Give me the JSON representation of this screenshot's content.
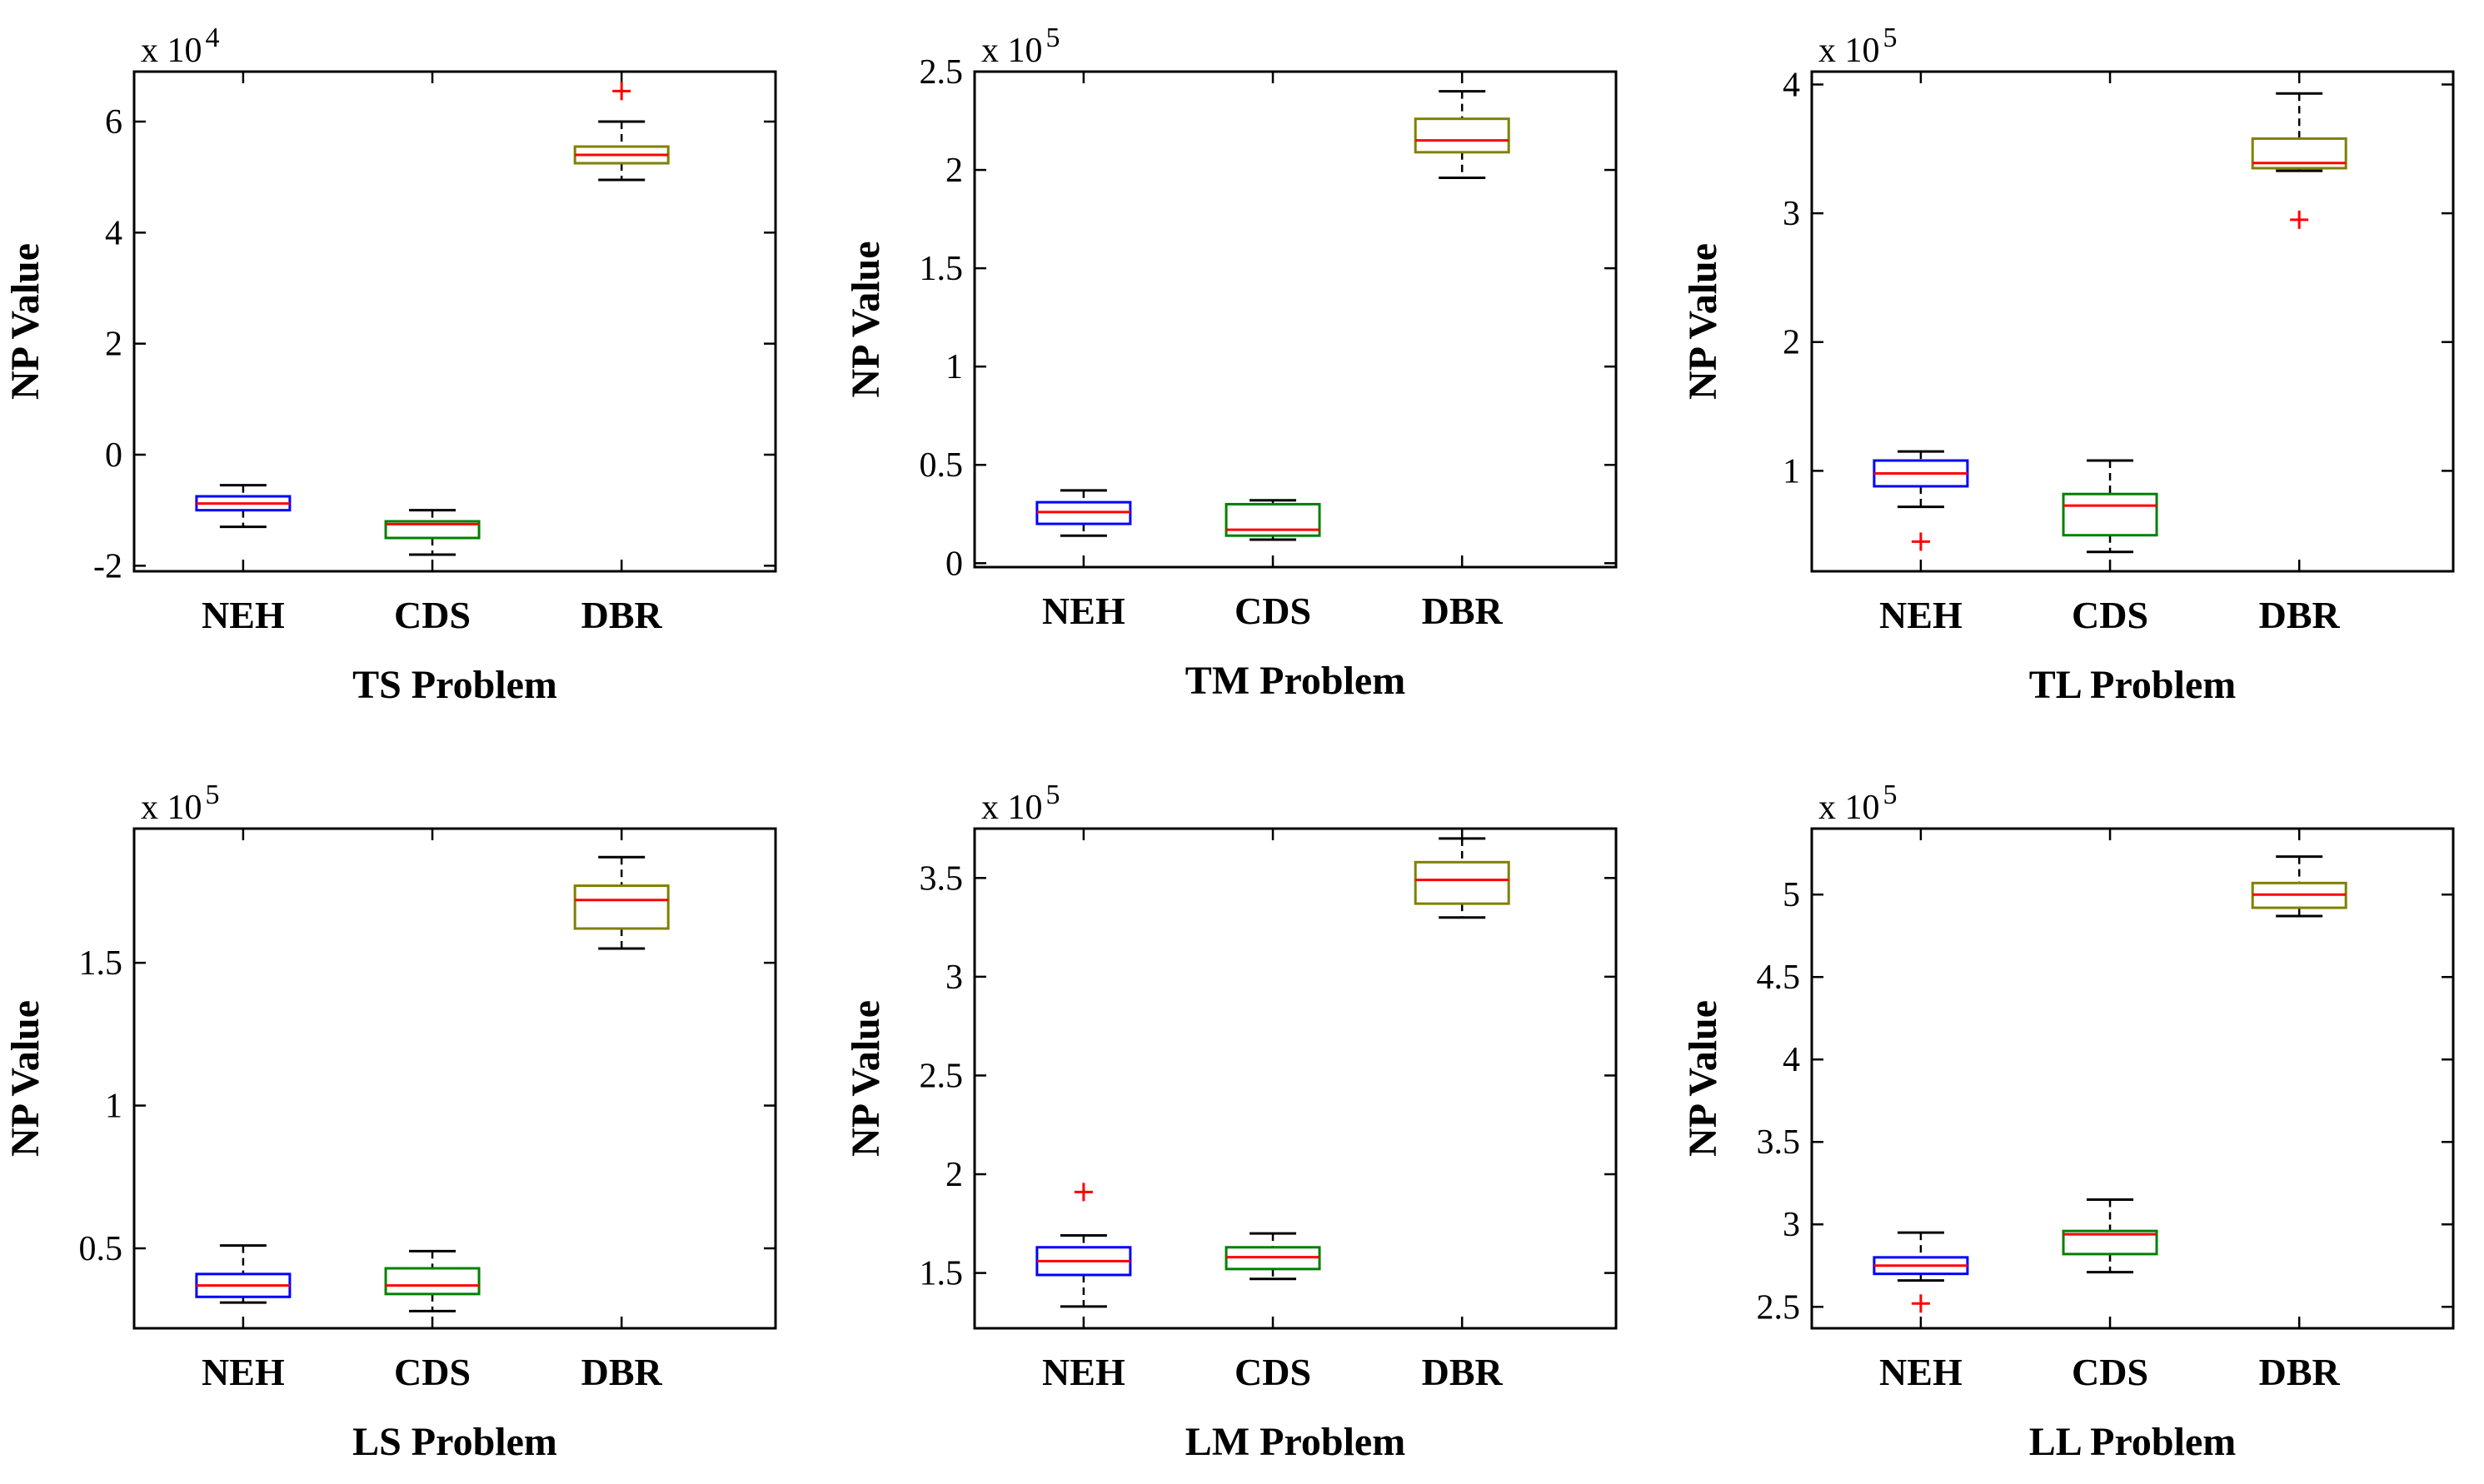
{
  "figure": {
    "ylabel": "NP Value",
    "multiplier_base": "x 10"
  },
  "colors": {
    "NEH": "#0000ff",
    "CDS": "#008000",
    "DBR": "#808000",
    "median": "#ff0000",
    "outlier": "#ff0000",
    "whisker": "#000000"
  },
  "chart_data": [
    {
      "type": "boxplot",
      "title": "TS Problem",
      "xlabel": "TS Problem",
      "ylabel": "NP Value",
      "multiplier_exponent": "4",
      "ylim": [
        -2.1,
        6.9
      ],
      "yticks": [
        -2,
        0,
        2,
        4,
        6
      ],
      "ytick_labels": [
        "-2",
        "0",
        "2",
        "4",
        "6"
      ],
      "categories": [
        "NEH",
        "CDS",
        "DBR"
      ],
      "boxes": [
        {
          "name": "NEH",
          "whisker_low": -1.3,
          "q1": -1.0,
          "median": -0.88,
          "q3": -0.75,
          "whisker_high": -0.55,
          "outliers": []
        },
        {
          "name": "CDS",
          "whisker_low": -1.8,
          "q1": -1.5,
          "median": -1.25,
          "q3": -1.2,
          "whisker_high": -1.0,
          "outliers": []
        },
        {
          "name": "DBR",
          "whisker_low": 4.95,
          "q1": 5.25,
          "median": 5.4,
          "q3": 5.55,
          "whisker_high": 6.0,
          "outliers": [
            6.55
          ]
        }
      ]
    },
    {
      "type": "boxplot",
      "title": "TM Problem",
      "xlabel": "TM Problem",
      "ylabel": "NP Value",
      "multiplier_exponent": "5",
      "ylim": [
        -0.02,
        2.5
      ],
      "yticks": [
        0,
        0.5,
        1,
        1.5,
        2,
        2.5
      ],
      "ytick_labels": [
        "0",
        "0.5",
        "1",
        "1.5",
        "2",
        "2.5"
      ],
      "categories": [
        "NEH",
        "CDS",
        "DBR"
      ],
      "boxes": [
        {
          "name": "NEH",
          "whisker_low": 0.14,
          "q1": 0.2,
          "median": 0.26,
          "q3": 0.31,
          "whisker_high": 0.37,
          "outliers": []
        },
        {
          "name": "CDS",
          "whisker_low": 0.12,
          "q1": 0.14,
          "median": 0.17,
          "q3": 0.3,
          "whisker_high": 0.32,
          "outliers": []
        },
        {
          "name": "DBR",
          "whisker_low": 1.96,
          "q1": 2.09,
          "median": 2.15,
          "q3": 2.26,
          "whisker_high": 2.4,
          "outliers": []
        }
      ]
    },
    {
      "type": "boxplot",
      "title": "TL Problem",
      "xlabel": "TL Problem",
      "ylabel": "NP Value",
      "multiplier_exponent": "5",
      "ylim": [
        0.22,
        4.1
      ],
      "yticks": [
        1,
        2,
        3,
        4
      ],
      "ytick_labels": [
        "1",
        "2",
        "3",
        "4"
      ],
      "categories": [
        "NEH",
        "CDS",
        "DBR"
      ],
      "boxes": [
        {
          "name": "NEH",
          "whisker_low": 0.72,
          "q1": 0.88,
          "median": 0.98,
          "q3": 1.08,
          "whisker_high": 1.15,
          "outliers": [
            0.45
          ]
        },
        {
          "name": "CDS",
          "whisker_low": 0.37,
          "q1": 0.5,
          "median": 0.73,
          "q3": 0.82,
          "whisker_high": 1.08,
          "outliers": []
        },
        {
          "name": "DBR",
          "whisker_low": 3.33,
          "q1": 3.35,
          "median": 3.39,
          "q3": 3.58,
          "whisker_high": 3.93,
          "outliers": [
            2.95
          ]
        }
      ]
    },
    {
      "type": "boxplot",
      "title": "LS Problem",
      "xlabel": "LS Problem",
      "ylabel": "NP Value",
      "multiplier_exponent": "5",
      "ylim": [
        0.22,
        1.97
      ],
      "yticks": [
        0.5,
        1,
        1.5
      ],
      "ytick_labels": [
        "0.5",
        "1",
        "1.5"
      ],
      "categories": [
        "NEH",
        "CDS",
        "DBR"
      ],
      "boxes": [
        {
          "name": "NEH",
          "whisker_low": 0.31,
          "q1": 0.33,
          "median": 0.37,
          "q3": 0.41,
          "whisker_high": 0.51,
          "outliers": []
        },
        {
          "name": "CDS",
          "whisker_low": 0.28,
          "q1": 0.34,
          "median": 0.37,
          "q3": 0.43,
          "whisker_high": 0.49,
          "outliers": []
        },
        {
          "name": "DBR",
          "whisker_low": 1.55,
          "q1": 1.62,
          "median": 1.72,
          "q3": 1.77,
          "whisker_high": 1.87,
          "outliers": []
        }
      ]
    },
    {
      "type": "boxplot",
      "title": "LM Problem",
      "xlabel": "LM Problem",
      "ylabel": "NP Value",
      "multiplier_exponent": "5",
      "ylim": [
        1.22,
        3.75
      ],
      "yticks": [
        1.5,
        2,
        2.5,
        3,
        3.5
      ],
      "ytick_labels": [
        "1.5",
        "2",
        "2.5",
        "3",
        "3.5"
      ],
      "categories": [
        "NEH",
        "CDS",
        "DBR"
      ],
      "boxes": [
        {
          "name": "NEH",
          "whisker_low": 1.33,
          "q1": 1.49,
          "median": 1.56,
          "q3": 1.63,
          "whisker_high": 1.69,
          "outliers": [
            1.91
          ]
        },
        {
          "name": "CDS",
          "whisker_low": 1.47,
          "q1": 1.52,
          "median": 1.58,
          "q3": 1.63,
          "whisker_high": 1.7,
          "outliers": []
        },
        {
          "name": "DBR",
          "whisker_low": 3.3,
          "q1": 3.37,
          "median": 3.49,
          "q3": 3.58,
          "whisker_high": 3.7,
          "outliers": []
        }
      ]
    },
    {
      "type": "boxplot",
      "title": "LL Problem",
      "xlabel": "LL Problem",
      "ylabel": "NP Value",
      "multiplier_exponent": "5",
      "ylim": [
        2.37,
        5.4
      ],
      "yticks": [
        2.5,
        3,
        3.5,
        4,
        4.5,
        5
      ],
      "ytick_labels": [
        "2.5",
        "3",
        "3.5",
        "4",
        "4.5",
        "5"
      ],
      "categories": [
        "NEH",
        "CDS",
        "DBR"
      ],
      "boxes": [
        {
          "name": "NEH",
          "whisker_low": 2.66,
          "q1": 2.7,
          "median": 2.75,
          "q3": 2.8,
          "whisker_high": 2.95,
          "outliers": [
            2.52
          ]
        },
        {
          "name": "CDS",
          "whisker_low": 2.71,
          "q1": 2.82,
          "median": 2.94,
          "q3": 2.96,
          "whisker_high": 3.15,
          "outliers": []
        },
        {
          "name": "DBR",
          "whisker_low": 4.87,
          "q1": 4.92,
          "median": 5.0,
          "q3": 5.07,
          "whisker_high": 5.23,
          "outliers": []
        }
      ]
    }
  ]
}
